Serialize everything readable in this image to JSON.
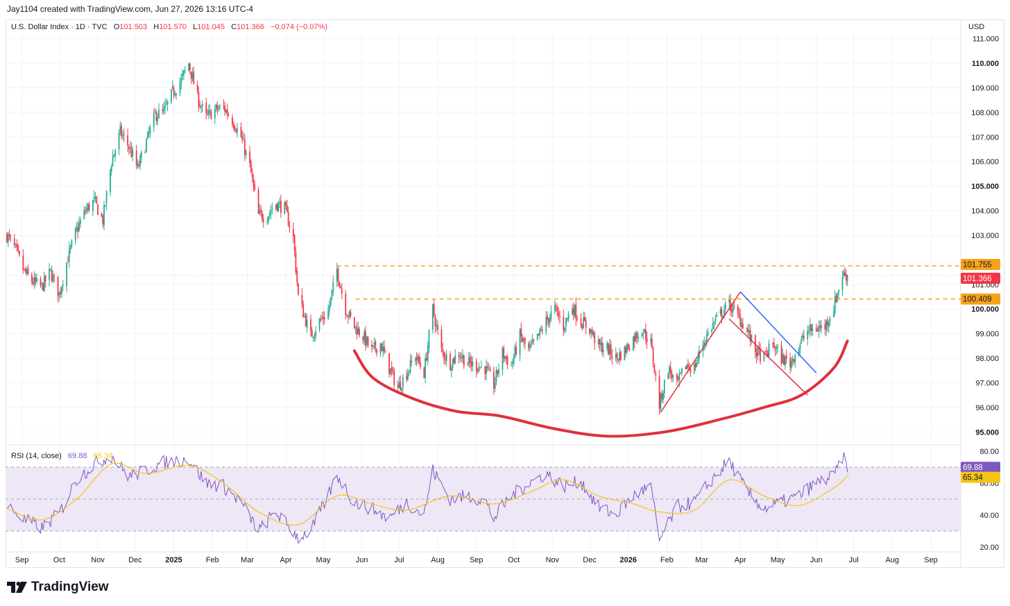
{
  "header": {
    "credit": "Jay1104 created with TradingView.com, Jun 27, 2026 13:16 UTC-4"
  },
  "legend": {
    "symbol": "U.S. Dollar Index · 1D · TVC",
    "o_label": "O",
    "o_value": "101.503",
    "h_label": "H",
    "h_value": "101.570",
    "l_label": "L",
    "l_value": "101.045",
    "c_label": "C",
    "c_value": "101.366",
    "change": "−0.074 (−0.07%)"
  },
  "currency": "USD",
  "rsi_legend": {
    "label": "RSI (14, close)",
    "rsi_value": "69.88",
    "ma_value": "65.34"
  },
  "brand": "TradingView",
  "colors": {
    "up": "#22ab94",
    "down": "#f23645",
    "level": "#f7a21b",
    "curve": "#e0303b",
    "blue_line": "#2962ff",
    "red_line": "#e0303b",
    "rsi": "#7e57c2",
    "rsi_ma": "#f5c518",
    "rsi_band": "#ede7f6",
    "grid": "#f0f3fa",
    "axis_text": "#131722"
  },
  "chart_data": [
    {
      "type": "candlestick",
      "title": "U.S. Dollar Index · 1D · TVC",
      "x_tick_labels": [
        "Sep",
        "Oct",
        "Nov",
        "Dec",
        "2025",
        "Feb",
        "Mar",
        "Apr",
        "May",
        "Jun",
        "Jul",
        "Aug",
        "Sep",
        "Oct",
        "Nov",
        "Dec",
        "2026",
        "Feb",
        "Mar",
        "Apr",
        "May",
        "Jun",
        "Jul",
        "Aug",
        "Sep"
      ],
      "x_tick_bold": [
        "2025",
        "2026"
      ],
      "y_tick_labels": [
        "111.000",
        "110.000",
        "109.000",
        "108.000",
        "107.000",
        "106.000",
        "105.000",
        "104.000",
        "103.000",
        "101.000",
        "100.000",
        "99.000",
        "98.000",
        "97.000",
        "96.000",
        "95.000"
      ],
      "y_tick_bold": [
        "110.000",
        "105.000",
        "100.000",
        "95.000"
      ],
      "ylim": [
        94.5,
        111.3
      ],
      "price_path": [
        [
          "2024-08-20",
          103.0
        ],
        [
          "2024-08-27",
          102.4
        ],
        [
          "2024-09-03",
          101.5
        ],
        [
          "2024-09-10",
          101.1
        ],
        [
          "2024-09-17",
          100.9
        ],
        [
          "2024-09-24",
          101.5
        ],
        [
          "2024-10-01",
          100.6
        ],
        [
          "2024-10-08",
          102.1
        ],
        [
          "2024-10-15",
          103.2
        ],
        [
          "2024-10-22",
          104.0
        ],
        [
          "2024-10-29",
          104.4
        ],
        [
          "2024-11-05",
          103.6
        ],
        [
          "2024-11-12",
          106.0
        ],
        [
          "2024-11-19",
          107.2
        ],
        [
          "2024-11-26",
          106.6
        ],
        [
          "2024-12-03",
          105.7
        ],
        [
          "2024-12-10",
          106.8
        ],
        [
          "2024-12-17",
          107.9
        ],
        [
          "2024-12-24",
          108.0
        ],
        [
          "2024-12-31",
          108.8
        ],
        [
          "2025-01-07",
          109.3
        ],
        [
          "2025-01-13",
          110.0
        ],
        [
          "2025-01-20",
          108.6
        ],
        [
          "2025-01-27",
          107.8
        ],
        [
          "2025-02-03",
          108.1
        ],
        [
          "2025-02-10",
          108.2
        ],
        [
          "2025-02-17",
          107.7
        ],
        [
          "2025-02-24",
          107.0
        ],
        [
          "2025-03-03",
          105.8
        ],
        [
          "2025-03-10",
          103.8
        ],
        [
          "2025-03-17",
          103.8
        ],
        [
          "2025-03-24",
          104.3
        ],
        [
          "2025-03-31",
          104.1
        ],
        [
          "2025-04-07",
          102.9
        ],
        [
          "2025-04-11",
          100.5
        ],
        [
          "2025-04-21",
          98.9
        ],
        [
          "2025-04-28",
          99.5
        ],
        [
          "2025-05-05",
          99.9
        ],
        [
          "2025-05-12",
          101.6
        ],
        [
          "2025-05-19",
          100.0
        ],
        [
          "2025-05-26",
          99.3
        ],
        [
          "2025-06-02",
          98.9
        ],
        [
          "2025-06-09",
          98.3
        ],
        [
          "2025-06-16",
          98.6
        ],
        [
          "2025-06-23",
          97.6
        ],
        [
          "2025-06-30",
          96.8
        ],
        [
          "2025-07-07",
          97.4
        ],
        [
          "2025-07-14",
          98.1
        ],
        [
          "2025-07-21",
          97.4
        ],
        [
          "2025-07-28",
          100.0
        ],
        [
          "2025-08-04",
          98.3
        ],
        [
          "2025-08-11",
          97.8
        ],
        [
          "2025-08-18",
          98.2
        ],
        [
          "2025-08-25",
          97.8
        ],
        [
          "2025-09-01",
          97.7
        ],
        [
          "2025-09-08",
          97.6
        ],
        [
          "2025-09-15",
          96.9
        ],
        [
          "2025-09-22",
          98.2
        ],
        [
          "2025-09-29",
          97.7
        ],
        [
          "2025-10-06",
          98.9
        ],
        [
          "2025-10-13",
          98.3
        ],
        [
          "2025-10-20",
          98.8
        ],
        [
          "2025-10-27",
          99.5
        ],
        [
          "2025-11-03",
          100.0
        ],
        [
          "2025-11-10",
          99.3
        ],
        [
          "2025-11-17",
          100.1
        ],
        [
          "2025-11-24",
          99.5
        ],
        [
          "2025-12-01",
          99.2
        ],
        [
          "2025-12-08",
          98.5
        ],
        [
          "2025-12-15",
          98.4
        ],
        [
          "2025-12-22",
          98.0
        ],
        [
          "2025-12-29",
          98.3
        ],
        [
          "2026-01-05",
          98.8
        ],
        [
          "2026-01-12",
          99.2
        ],
        [
          "2026-01-19",
          98.6
        ],
        [
          "2026-01-26",
          96.1
        ],
        [
          "2026-02-02",
          97.6
        ],
        [
          "2026-02-09",
          96.9
        ],
        [
          "2026-02-16",
          97.7
        ],
        [
          "2026-02-23",
          97.6
        ],
        [
          "2026-03-02",
          98.6
        ],
        [
          "2026-03-09",
          99.3
        ],
        [
          "2026-03-16",
          99.8
        ],
        [
          "2026-03-23",
          100.2
        ],
        [
          "2026-03-30",
          99.7
        ],
        [
          "2026-04-06",
          99.2
        ],
        [
          "2026-04-13",
          98.3
        ],
        [
          "2026-04-20",
          98.0
        ],
        [
          "2026-04-27",
          98.6
        ],
        [
          "2026-05-04",
          98.0
        ],
        [
          "2026-05-11",
          97.8
        ],
        [
          "2026-05-18",
          98.5
        ],
        [
          "2026-05-25",
          99.1
        ],
        [
          "2026-06-01",
          99.2
        ],
        [
          "2026-06-08",
          99.3
        ],
        [
          "2026-06-15",
          100.1
        ],
        [
          "2026-06-22",
          101.4
        ],
        [
          "2026-06-27",
          101.366
        ]
      ],
      "horizontal_levels": [
        {
          "value": 101.755,
          "label": "101.755",
          "start": "2025-05-12"
        },
        {
          "value": 100.409,
          "label": "100.409",
          "start": "2025-05-27"
        }
      ],
      "last_price": {
        "value": 101.366,
        "label": "101.366"
      },
      "annotations": {
        "rounded_bottom_curve": [
          [
            "2025-05-26",
            98.3
          ],
          [
            "2025-06-10",
            97.2
          ],
          [
            "2025-07-10",
            96.4
          ],
          [
            "2025-08-15",
            95.85
          ],
          [
            "2025-09-20",
            95.65
          ],
          [
            "2025-11-01",
            95.15
          ],
          [
            "2025-12-15",
            94.83
          ],
          [
            "2026-01-30",
            95.0
          ],
          [
            "2026-03-15",
            95.5
          ],
          [
            "2026-04-20",
            96.0
          ],
          [
            "2026-05-20",
            96.5
          ],
          [
            "2026-06-15",
            97.6
          ],
          [
            "2026-06-26",
            98.7
          ]
        ],
        "red_up_line": [
          [
            "2026-01-27",
            95.8
          ],
          [
            "2026-04-01",
            100.7
          ]
        ],
        "blue_line": [
          [
            "2026-04-01",
            100.7
          ],
          [
            "2026-06-01",
            97.4
          ]
        ],
        "red_down_line": [
          [
            "2026-03-23",
            99.6
          ],
          [
            "2026-05-25",
            96.5
          ]
        ]
      }
    },
    {
      "type": "line",
      "title": "RSI (14, close)",
      "y_tick_labels": [
        "80.00",
        "60.00",
        "40.00",
        "20.00"
      ],
      "ylim": [
        17,
        83
      ],
      "band": [
        30,
        70
      ],
      "series": [
        {
          "name": "RSI (14, close)",
          "last_value": 69.88,
          "path": [
            [
              "2024-08-20",
              46
            ],
            [
              "2024-09-03",
              37
            ],
            [
              "2024-09-17",
              32
            ],
            [
              "2024-10-01",
              41
            ],
            [
              "2024-10-15",
              62
            ],
            [
              "2024-10-29",
              72
            ],
            [
              "2024-11-12",
              77
            ],
            [
              "2024-11-26",
              64
            ],
            [
              "2024-12-10",
              68
            ],
            [
              "2024-12-24",
              73
            ],
            [
              "2025-01-13",
              75
            ],
            [
              "2025-01-27",
              60
            ],
            [
              "2025-02-10",
              58
            ],
            [
              "2025-02-24",
              48
            ],
            [
              "2025-03-10",
              30
            ],
            [
              "2025-03-24",
              42
            ],
            [
              "2025-04-11",
              26
            ],
            [
              "2025-04-21",
              30
            ],
            [
              "2025-05-05",
              52
            ],
            [
              "2025-05-12",
              65
            ],
            [
              "2025-05-26",
              48
            ],
            [
              "2025-06-09",
              44
            ],
            [
              "2025-06-23",
              38
            ],
            [
              "2025-07-07",
              48
            ],
            [
              "2025-07-21",
              40
            ],
            [
              "2025-07-28",
              68
            ],
            [
              "2025-08-11",
              50
            ],
            [
              "2025-08-25",
              52
            ],
            [
              "2025-09-08",
              49
            ],
            [
              "2025-09-15",
              38
            ],
            [
              "2025-09-29",
              52
            ],
            [
              "2025-10-13",
              60
            ],
            [
              "2025-10-27",
              66
            ],
            [
              "2025-11-10",
              58
            ],
            [
              "2025-11-24",
              61
            ],
            [
              "2025-12-08",
              45
            ],
            [
              "2025-12-22",
              40
            ],
            [
              "2026-01-05",
              52
            ],
            [
              "2026-01-19",
              58
            ],
            [
              "2026-01-26",
              24
            ],
            [
              "2026-02-09",
              45
            ],
            [
              "2026-02-23",
              48
            ],
            [
              "2026-03-09",
              62
            ],
            [
              "2026-03-23",
              74
            ],
            [
              "2026-04-06",
              55
            ],
            [
              "2026-04-20",
              44
            ],
            [
              "2026-05-04",
              48
            ],
            [
              "2026-05-18",
              52
            ],
            [
              "2026-06-01",
              60
            ],
            [
              "2026-06-15",
              64
            ],
            [
              "2026-06-22",
              76
            ],
            [
              "2026-06-27",
              69.88
            ]
          ]
        },
        {
          "name": "RSI-based MA",
          "last_value": 65.34,
          "path": [
            [
              "2024-08-20",
              44
            ],
            [
              "2024-09-17",
              37
            ],
            [
              "2024-10-15",
              50
            ],
            [
              "2024-11-12",
              72
            ],
            [
              "2024-12-10",
              66
            ],
            [
              "2025-01-13",
              71
            ],
            [
              "2025-02-10",
              60
            ],
            [
              "2025-03-10",
              42
            ],
            [
              "2025-04-11",
              34
            ],
            [
              "2025-05-12",
              52
            ],
            [
              "2025-06-09",
              47
            ],
            [
              "2025-07-07",
              43
            ],
            [
              "2025-08-11",
              52
            ],
            [
              "2025-09-15",
              47
            ],
            [
              "2025-10-13",
              54
            ],
            [
              "2025-11-10",
              62
            ],
            [
              "2025-12-08",
              52
            ],
            [
              "2026-01-05",
              47
            ],
            [
              "2026-01-26",
              42
            ],
            [
              "2026-02-23",
              43
            ],
            [
              "2026-03-23",
              62
            ],
            [
              "2026-04-20",
              52
            ],
            [
              "2026-05-18",
              46
            ],
            [
              "2026-06-15",
              57
            ],
            [
              "2026-06-27",
              65.34
            ]
          ]
        }
      ]
    }
  ]
}
